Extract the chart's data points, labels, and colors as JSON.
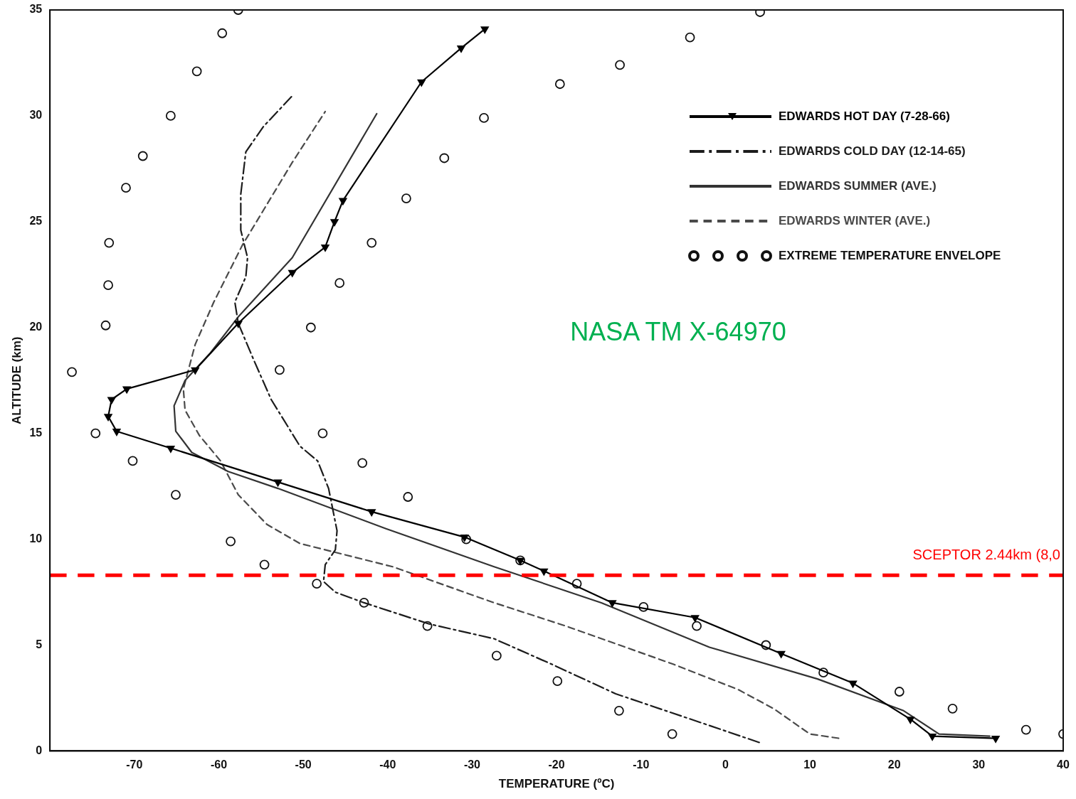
{
  "chart_data": {
    "type": "line",
    "xlabel": "TEMPERATURE (ºC)",
    "ylabel": "ALTITUDE (km)",
    "xlim": [
      -80,
      40
    ],
    "xticks": [
      -70,
      -60,
      -50,
      -40,
      -30,
      -20,
      -10,
      0,
      10,
      20,
      30,
      40
    ],
    "ylim": [
      0,
      35
    ],
    "yticks": [
      0,
      5,
      10,
      15,
      20,
      25,
      30,
      35
    ],
    "grid": false,
    "legend": "top right",
    "series": [
      {
        "name": "EDWARDS HOT DAY (7-28-66)",
        "type": "line",
        "color": "#000000",
        "marker": "triangle",
        "line_style": "solid",
        "x": [
          32.0,
          24.5,
          21.9,
          15.1,
          6.6,
          -3.6,
          -13.4,
          -21.5,
          -24.3,
          -30.9,
          -41.9,
          -53.0,
          -65.7,
          -72.1,
          -73.1,
          -72.7,
          -70.9,
          -62.8,
          -57.7,
          -51.3,
          -47.4,
          -46.3,
          -45.3,
          -36.0,
          -31.3,
          -28.5
        ],
        "values": [
          0.6,
          0.7,
          1.5,
          3.2,
          4.6,
          6.3,
          7.0,
          8.5,
          9.0,
          10.1,
          11.3,
          12.7,
          14.3,
          15.1,
          15.8,
          16.6,
          17.1,
          18.0,
          20.2,
          22.6,
          23.8,
          25.0,
          26.0,
          31.6,
          33.2,
          34.1
        ]
      },
      {
        "name": "EDWARDS COLD DAY (12-14-65)",
        "type": "line",
        "color": "#1c1c1c",
        "marker": "none",
        "line_style": "dashdot",
        "x": [
          4.0,
          -1.9,
          -13.0,
          -20.6,
          -27.4,
          -35.1,
          -42.8,
          -46.2,
          -47.6,
          -47.4,
          -46.2,
          -46.0,
          -47.0,
          -48.3,
          -50.4,
          -53.8,
          -55.9,
          -57.7,
          -58.1,
          -56.8,
          -56.6,
          -57.4,
          -57.4,
          -56.8,
          -54.7,
          -51.4
        ],
        "values": [
          0.4,
          1.2,
          2.7,
          4.1,
          5.3,
          6.0,
          7.0,
          7.5,
          8.0,
          8.8,
          9.5,
          10.4,
          12.4,
          13.7,
          14.4,
          16.6,
          18.5,
          20.2,
          21.2,
          22.4,
          23.3,
          24.6,
          26.3,
          28.3,
          29.5,
          30.9
        ]
      },
      {
        "name": "EDWARDS SUMMER (AVE.)",
        "type": "line",
        "color": "#333333",
        "marker": "none",
        "line_style": "solid",
        "x": [
          31.3,
          25.3,
          21.1,
          10.9,
          -1.9,
          -14.7,
          -27.4,
          -40.2,
          -53.0,
          -58.9,
          -63.2,
          -65.1,
          -65.3,
          -64.0,
          -61.0,
          -57.7,
          -51.3,
          -41.3
        ],
        "values": [
          0.7,
          0.8,
          1.9,
          3.4,
          4.9,
          7.0,
          8.7,
          10.5,
          12.4,
          13.2,
          14.1,
          15.1,
          16.3,
          17.5,
          18.8,
          20.5,
          23.3,
          30.1
        ]
      },
      {
        "name": "EDWARDS WINTER (AVE.)",
        "type": "line",
        "color": "#4a4a4a",
        "marker": "none",
        "line_style": "dashed",
        "x": [
          13.4,
          10.0,
          5.7,
          1.5,
          -6.2,
          -18.9,
          -27.4,
          -39.4,
          -50.4,
          -54.3,
          -57.7,
          -59.8,
          -62.3,
          -64.0,
          -64.2,
          -62.8,
          -60.6,
          -57.2,
          -51.3,
          -47.4
        ],
        "values": [
          0.6,
          0.8,
          2.0,
          2.9,
          4.1,
          5.9,
          7.0,
          8.7,
          9.8,
          10.7,
          12.1,
          13.7,
          14.9,
          16.1,
          17.1,
          19.2,
          21.2,
          23.9,
          27.8,
          30.2
        ]
      },
      {
        "name": "EXTREME TEMPERATURE ENVELOPE",
        "type": "scatter",
        "color": "#111111",
        "marker": "circle",
        "x": [
          -57.7,
          4.1,
          -59.6,
          -4.2,
          -62.6,
          -12.5,
          -19.6,
          -65.7,
          -28.6,
          -69.0,
          -33.3,
          -71.0,
          -37.8,
          -73.0,
          -41.9,
          -73.1,
          -45.7,
          -73.4,
          -49.1,
          -77.4,
          -52.8,
          -74.6,
          -47.7,
          -70.2,
          -43.0,
          -65.1,
          -37.6,
          -58.6,
          -30.7,
          -54.6,
          -24.3,
          -48.4,
          -17.6,
          -42.8,
          -9.7,
          -35.3,
          -3.4,
          -27.1,
          4.8,
          -19.9,
          11.6,
          -12.6,
          20.6,
          -6.3,
          26.9,
          35.6,
          40.0
        ],
        "values": [
          35.0,
          34.9,
          33.9,
          33.7,
          32.1,
          32.4,
          31.5,
          30.0,
          29.9,
          28.1,
          28.0,
          26.6,
          26.1,
          24.0,
          24.0,
          22.0,
          22.1,
          20.1,
          20.0,
          17.9,
          18.0,
          15.0,
          15.0,
          13.7,
          13.6,
          12.1,
          12.0,
          9.9,
          10.0,
          8.8,
          9.0,
          7.9,
          7.9,
          7.0,
          6.8,
          5.9,
          5.9,
          4.5,
          5.0,
          3.3,
          3.7,
          1.9,
          2.8,
          0.8,
          2.0,
          1.0,
          0.8
        ]
      }
    ],
    "ref_lines": [
      {
        "axis": "y",
        "value": 8.3,
        "label": "SCEPTOR 2.44km (8,0",
        "color": "#ff0000",
        "line_style": "dashed"
      }
    ],
    "annotations": [
      "NASA TM X-64970"
    ]
  }
}
